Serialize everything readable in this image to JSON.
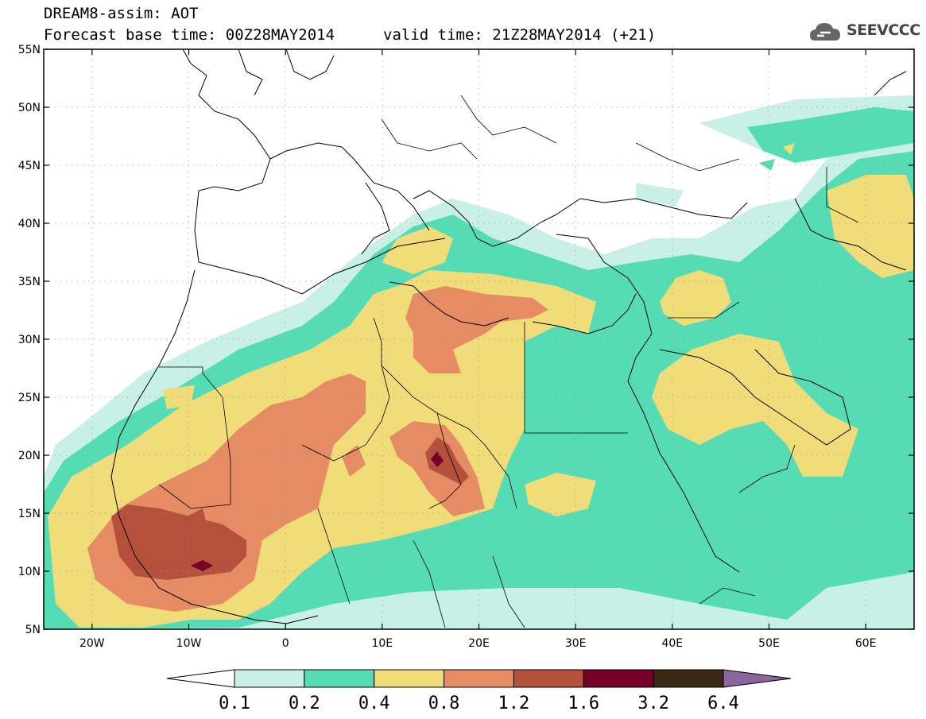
{
  "header": {
    "title": "DREAM8-assim: AOT",
    "base_time": "Forecast base time: 00Z28MAY2014",
    "valid_time": "valid time: 21Z28MAY2014 (+21)"
  },
  "logo": {
    "text": "SEEVCCC",
    "icon": "cloud-icon"
  },
  "map": {
    "lon_range": [
      -25,
      65
    ],
    "lat_range": [
      5,
      55
    ],
    "lat_labels": [
      "5N",
      "10N",
      "15N",
      "20N",
      "25N",
      "30N",
      "35N",
      "40N",
      "45N",
      "50N",
      "55N"
    ],
    "lat_values": [
      5,
      10,
      15,
      20,
      25,
      30,
      35,
      40,
      45,
      50,
      55
    ],
    "lon_labels": [
      "20W",
      "10W",
      "0",
      "10E",
      "20E",
      "30E",
      "40E",
      "50E",
      "60E"
    ],
    "lon_values": [
      -20,
      -10,
      0,
      10,
      20,
      30,
      40,
      50,
      60
    ],
    "grid": "dotted"
  },
  "colorbar": {
    "labels": [
      "0.1",
      "0.2",
      "0.4",
      "0.8",
      "1.2",
      "1.6",
      "3.2",
      "6.4"
    ],
    "colors": [
      "#ffffff",
      "#c8f0e6",
      "#55dcb4",
      "#f0dc78",
      "#e68c64",
      "#b4503c",
      "#780028",
      "#3c2814",
      "#8c64a0"
    ]
  }
}
